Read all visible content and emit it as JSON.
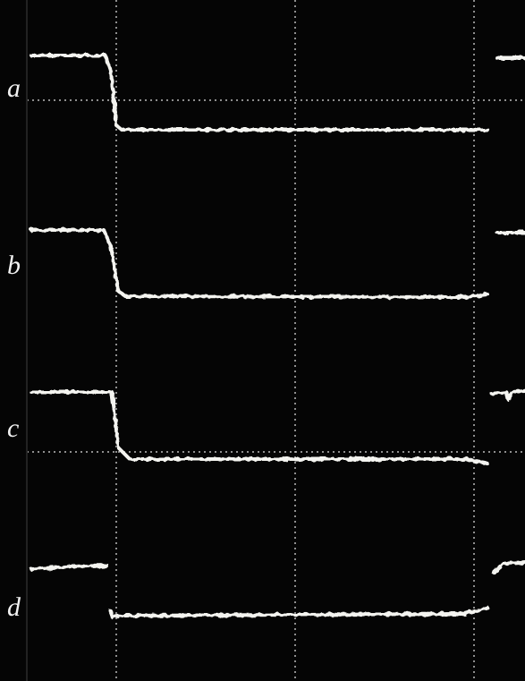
{
  "labels": [
    "a",
    "b",
    "c",
    "d"
  ]
}
